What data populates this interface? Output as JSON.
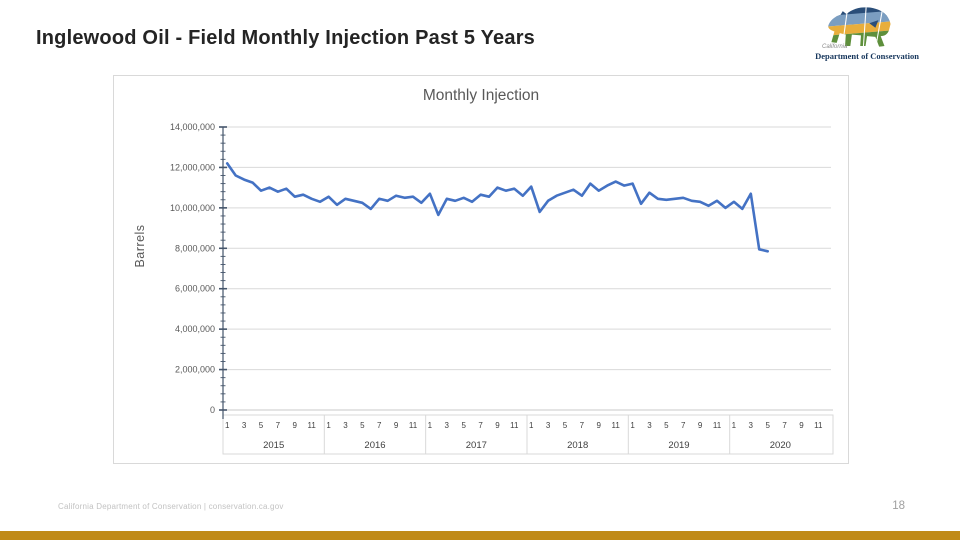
{
  "slide": {
    "title": "Inglewood Oil - Field Monthly Injection Past 5 Years",
    "footer": "California Department of Conservation | conservation.ca.gov",
    "page_number": "18",
    "accent_bar_color": "#C08A18"
  },
  "logo": {
    "caption_small": "California",
    "caption_bold": "Department of Conservation"
  },
  "chart_data": {
    "type": "line",
    "title": "Monthly Injection",
    "xlabel": "",
    "ylabel": "Barrels",
    "ylim": [
      0,
      14000000
    ],
    "y_major_step": 2000000,
    "y_minor_step": 400000,
    "grid": true,
    "legend_position": "none",
    "line_color": "#4472C4",
    "axis_color": "#44546A",
    "grid_color": "#D9D9D9",
    "label_color": "#595959",
    "tick_label_color": "#404040",
    "x_month_tick_labels": [
      "1",
      "3",
      "5",
      "7",
      "9",
      "11"
    ],
    "years": [
      "2015",
      "2016",
      "2017",
      "2018",
      "2019",
      "2020"
    ],
    "series": [
      {
        "name": "Monthly Injection",
        "unit": "barrels",
        "values_by_year": {
          "2015": [
            12200000,
            11600000,
            11400000,
            11250000,
            10850000,
            11000000,
            10800000,
            10950000,
            10550000,
            10650000,
            10450000,
            10300000
          ],
          "2016": [
            10550000,
            10150000,
            10450000,
            10350000,
            10250000,
            9950000,
            10450000,
            10350000,
            10600000,
            10500000,
            10550000,
            10250000
          ],
          "2017": [
            10700000,
            9650000,
            10450000,
            10350000,
            10500000,
            10300000,
            10650000,
            10550000,
            11000000,
            10850000,
            10950000,
            10600000
          ],
          "2018": [
            11050000,
            9800000,
            10350000,
            10600000,
            10750000,
            10900000,
            10600000,
            11200000,
            10850000,
            11100000,
            11300000,
            11100000
          ],
          "2019": [
            11200000,
            10200000,
            10750000,
            10450000,
            10400000,
            10450000,
            10500000,
            10350000,
            10300000,
            10100000,
            10350000,
            10000000
          ],
          "2020": [
            10300000,
            9950000,
            10700000,
            7950000,
            7850000
          ]
        }
      }
    ]
  }
}
